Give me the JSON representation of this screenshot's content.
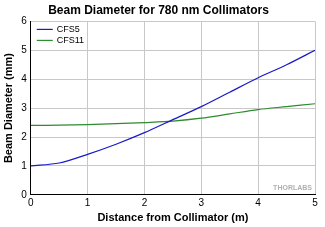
{
  "chart_data": {
    "type": "line",
    "title": "Beam Diameter for 780 nm Collimators",
    "x_label": "Distance from Collimator (m)",
    "y_label": "Beam Diameter (mm)",
    "annotations": [
      "THORLABS"
    ],
    "x": [
      0,
      0.5,
      1,
      1.5,
      2,
      2.5,
      3,
      3.5,
      4,
      4.5,
      5
    ],
    "series": [
      {
        "name": "CFS5",
        "color": "#1a1ac8",
        "values": [
          1.0,
          1.1,
          1.4,
          1.75,
          2.15,
          2.6,
          3.05,
          3.55,
          4.05,
          4.5,
          5.0
        ]
      },
      {
        "name": "CFS11",
        "color": "#2e8b2e",
        "values": [
          2.4,
          2.41,
          2.43,
          2.46,
          2.5,
          2.55,
          2.65,
          2.8,
          2.95,
          3.05,
          3.15
        ]
      }
    ],
    "xlim": [
      0,
      5
    ],
    "xticks": [
      0,
      1,
      2,
      3,
      4,
      5
    ],
    "ylim": [
      0,
      6
    ],
    "yticks": [
      0,
      1,
      2,
      3,
      4,
      5,
      6
    ],
    "grid": true,
    "legend": "upper left"
  }
}
